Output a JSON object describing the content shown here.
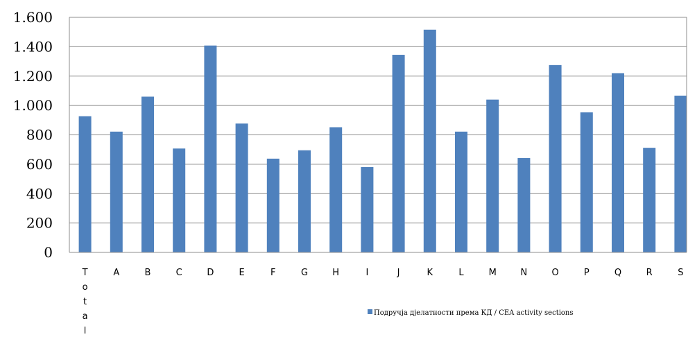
{
  "chart_data": {
    "type": "bar",
    "categories": [
      "Total",
      "A",
      "B",
      "C",
      "D",
      "E",
      "F",
      "G",
      "H",
      "I",
      "J",
      "K",
      "L",
      "M",
      "N",
      "O",
      "P",
      "Q",
      "R",
      "S"
    ],
    "series": [
      {
        "name": "Подручја дјелатности према КД / CEA activity sections",
        "values": [
          927,
          822,
          1060,
          707,
          1408,
          877,
          638,
          695,
          852,
          581,
          1345,
          1516,
          822,
          1040,
          642,
          1275,
          953,
          1220,
          712,
          1067
        ]
      }
    ],
    "ylim": [
      0,
      1600
    ],
    "yticks": [
      0,
      200,
      400,
      600,
      800,
      1000,
      1200,
      1400,
      1600
    ],
    "ytick_labels": [
      "0",
      "200",
      "400",
      "600",
      "800",
      "1.000",
      "1.200",
      "1.400",
      "1.600"
    ],
    "grid": true,
    "legend_position": "bottom",
    "bar_color": "#4F81BD"
  }
}
